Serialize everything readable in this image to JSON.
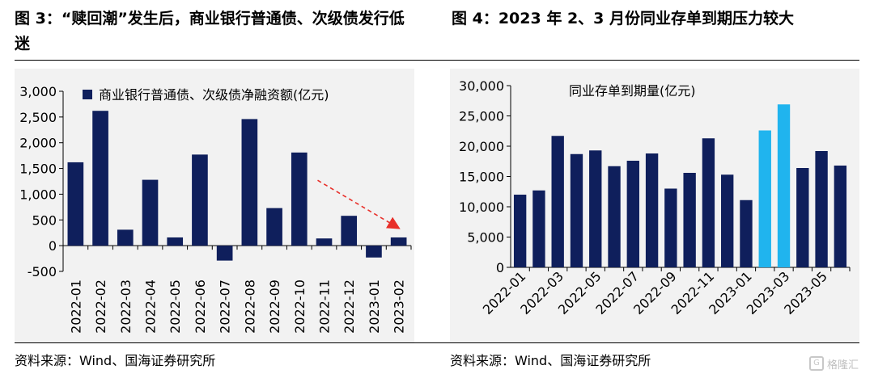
{
  "figures": {
    "left": {
      "title": "图 3：“赎回潮”发生后，商业银行普通债、次级债发行低迷",
      "source": "资料来源：Wind、国海证券研究所"
    },
    "right": {
      "title": "图 4：2023 年 2、3 月份同业存单到期压力较大",
      "source": "资料来源：Wind、国海证券研究所"
    }
  },
  "watermark": {
    "text": "格隆汇",
    "icon": "G"
  },
  "colors": {
    "navy": "#0f1f5c",
    "cyan": "#20b4ee",
    "arrow": "#e8302a",
    "plot_bg": "#f2f2f2"
  },
  "chart_data": [
    {
      "type": "bar",
      "legend": "商业银行普通债、次级债净融资额(亿元)",
      "legend_position": "top-left",
      "categories": [
        "2022-01",
        "2022-02",
        "2022-03",
        "2022-04",
        "2022-05",
        "2022-06",
        "2022-07",
        "2022-08",
        "2022-09",
        "2022-10",
        "2022-11",
        "2022-12",
        "2023-01",
        "2023-02"
      ],
      "values": [
        1620,
        2620,
        310,
        1280,
        160,
        1770,
        -290,
        2460,
        730,
        1810,
        140,
        580,
        -230,
        160
      ],
      "ylim": [
        -500,
        3000
      ],
      "yticks": [
        -500,
        0,
        500,
        1000,
        1500,
        2000,
        2500,
        3000
      ],
      "ytick_labels": [
        "-500",
        "0",
        "500",
        "1,000",
        "1,500",
        "2,000",
        "2,500",
        "3,000"
      ],
      "annotation": "downward-trend-arrow",
      "grid": false
    },
    {
      "type": "bar",
      "legend": "同业存单到期量(亿元)",
      "legend_position": "top-center",
      "categories": [
        "2022-01",
        "2022-02",
        "2022-03",
        "2022-04",
        "2022-05",
        "2022-06",
        "2022-07",
        "2022-08",
        "2022-09",
        "2022-10",
        "2022-11",
        "2022-12",
        "2023-01",
        "2023-02",
        "2023-03",
        "2023-04",
        "2023-05",
        "2023-06"
      ],
      "xtick_labels_shown": [
        "2022-01",
        "2022-03",
        "2022-05",
        "2022-07",
        "2022-09",
        "2022-11",
        "2023-01",
        "2023-03",
        "2023-05"
      ],
      "values": [
        12000,
        12700,
        21700,
        18700,
        19300,
        16700,
        17600,
        18800,
        13000,
        15600,
        21300,
        15300,
        11100,
        22600,
        26900,
        16400,
        19200,
        16800
      ],
      "highlight": [
        "2023-02",
        "2023-03"
      ],
      "ylim": [
        0,
        30000
      ],
      "yticks": [
        0,
        5000,
        10000,
        15000,
        20000,
        25000,
        30000
      ],
      "ytick_labels": [
        "0",
        "5,000",
        "10,000",
        "15,000",
        "20,000",
        "25,000",
        "30,000"
      ],
      "grid": false
    }
  ]
}
